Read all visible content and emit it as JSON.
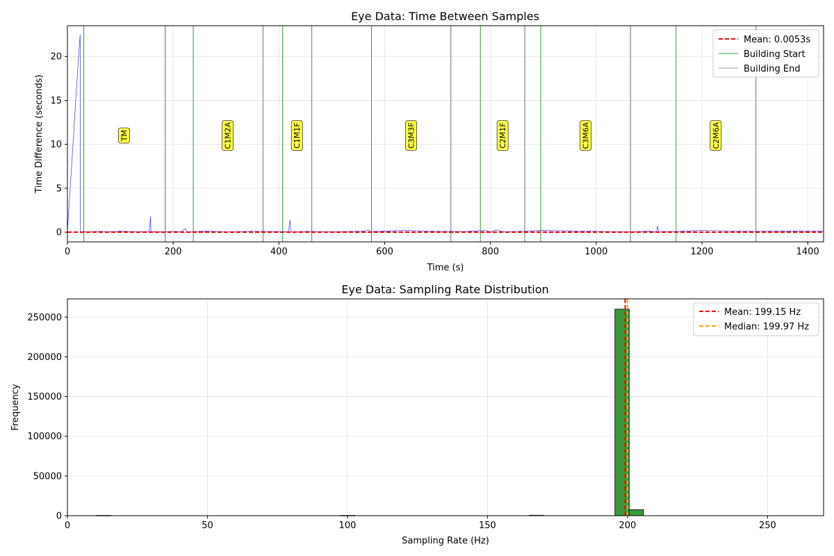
{
  "chart_data": [
    {
      "type": "line",
      "title": "Eye Data: Time Between Samples",
      "xlabel": "Time (s)",
      "ylabel": "Time Difference (seconds)",
      "xlim": [
        0,
        1430
      ],
      "ylim": [
        -1.1,
        23.5
      ],
      "xticks": [
        0,
        200,
        400,
        600,
        800,
        1000,
        1200,
        1400
      ],
      "yticks": [
        0,
        5,
        10,
        15,
        20
      ],
      "grid": true,
      "legend_position": "top-right",
      "mean_value": 0.0053,
      "series": [
        {
          "name": "",
          "color": "#0000ff",
          "x": [
            0,
            5,
            10,
            15,
            20,
            24,
            24.6,
            26,
            30,
            40,
            60,
            80,
            100,
            120,
            140,
            155,
            157,
            158,
            159,
            161,
            180,
            200,
            215,
            223,
            225,
            227,
            260,
            300,
            350,
            400,
            418,
            421,
            422,
            423,
            425,
            450,
            500,
            560,
            570,
            572,
            574,
            640,
            700,
            750,
            790,
            800,
            810,
            820,
            830,
            900,
            1000,
            1060,
            1100,
            1114,
            1116,
            1118,
            1150,
            1200,
            1300,
            1400,
            1430
          ],
          "y": [
            0.1,
            4.8,
            9.5,
            14.3,
            19.0,
            22.5,
            0.1,
            0.05,
            0.08,
            0.06,
            0.1,
            0.05,
            0.12,
            0.08,
            0.05,
            0.1,
            1.8,
            0.2,
            0.05,
            0.08,
            0.05,
            0.1,
            0.05,
            0.4,
            0.1,
            0.05,
            0.12,
            0.06,
            0.1,
            0.08,
            0.06,
            1.4,
            0.3,
            0.08,
            0.05,
            0.1,
            0.05,
            0.12,
            0.25,
            0.05,
            0.08,
            0.2,
            0.1,
            0.08,
            0.2,
            0.05,
            0.25,
            0.1,
            0.06,
            0.2,
            0.1,
            0.05,
            0.12,
            0.05,
            0.7,
            0.1,
            0.08,
            0.2,
            0.1,
            0.15,
            0.1
          ]
        }
      ],
      "legend": [
        {
          "label": "Mean: 0.0053s",
          "color": "#ff0000",
          "style": "dashed"
        },
        {
          "label": "Building Start",
          "color": "#2ca02c",
          "style": "solid"
        },
        {
          "label": "Building End",
          "color": "#999999",
          "style": "solid"
        }
      ],
      "building_start": [
        31,
        238,
        407,
        575,
        781,
        895,
        1151
      ],
      "building_end": [
        185,
        370,
        462,
        725,
        865,
        1065,
        1302
      ],
      "annotations": [
        {
          "text": "TM",
          "x": 107,
          "y": 11
        },
        {
          "text": "C1M2A",
          "x": 303,
          "y": 11
        },
        {
          "text": "C1M1F",
          "x": 434,
          "y": 11
        },
        {
          "text": "C3M3F",
          "x": 650,
          "y": 11
        },
        {
          "text": "C2M1F",
          "x": 823,
          "y": 11
        },
        {
          "text": "C3M6A",
          "x": 980,
          "y": 11
        },
        {
          "text": "C2M6A",
          "x": 1226,
          "y": 11
        }
      ],
      "colors": {
        "building_start": "#2ca02c",
        "building_end": "#999999",
        "annotation_bg": "#ffff44",
        "mean": "#ff0000"
      }
    },
    {
      "type": "bar",
      "title": "Eye Data: Sampling Rate Distribution",
      "xlabel": "Sampling Rate (Hz)",
      "ylabel": "Frequency",
      "xlim": [
        0,
        270
      ],
      "ylim": [
        0,
        273000
      ],
      "xticks": [
        0,
        50,
        100,
        150,
        200,
        250
      ],
      "yticks": [
        0,
        50000,
        100000,
        150000,
        200000,
        250000
      ],
      "grid": true,
      "legend_position": "top-right",
      "bin_width": 5.1,
      "bins": [
        {
          "start": 10.4,
          "value": 300
        },
        {
          "start": 97.5,
          "value": 300
        },
        {
          "start": 164.9,
          "value": 500
        },
        {
          "start": 195.5,
          "value": 260000
        },
        {
          "start": 200.6,
          "value": 7500
        }
      ],
      "mean": 199.15,
      "median": 199.97,
      "legend": [
        {
          "label": "Mean: 199.15 Hz",
          "color": "#ff0000",
          "style": "dashed"
        },
        {
          "label": "Median: 199.97 Hz",
          "color": "#ffa500",
          "style": "dashed"
        }
      ],
      "colors": {
        "bar": "#3a9a3a",
        "bar_edge": "#1a1a1a",
        "mean": "#ff0000",
        "median": "#ffa500"
      }
    }
  ]
}
